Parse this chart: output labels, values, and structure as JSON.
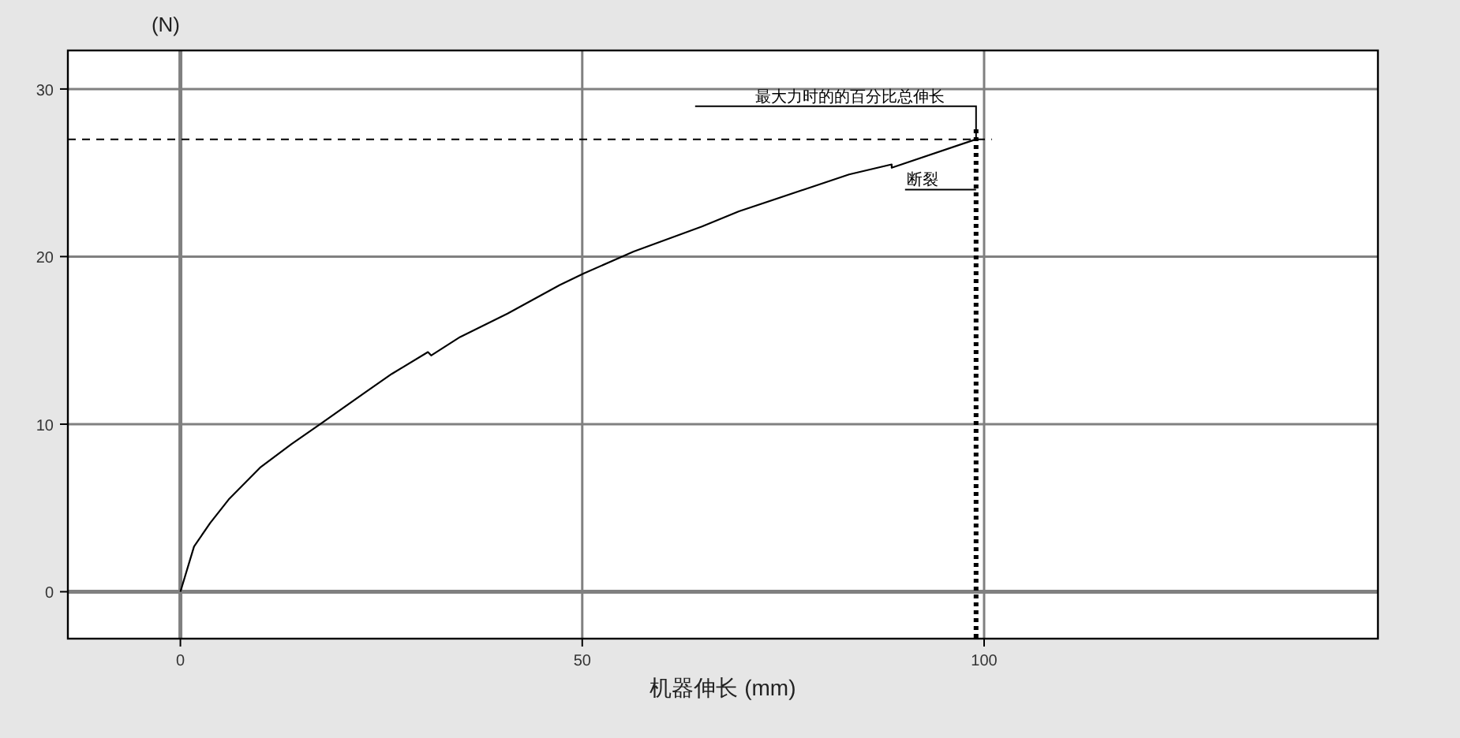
{
  "chart_data": {
    "type": "line",
    "xlabel": "机器伸长 (mm)",
    "ylabel": "(N)",
    "xlim": [
      -14,
      149
    ],
    "ylim": [
      -2.8,
      32.3
    ],
    "xticks": [
      0,
      50,
      100
    ],
    "yticks": [
      0,
      10,
      20,
      30
    ],
    "grid": true,
    "marker": "none",
    "line_style": "solid",
    "series": [
      {
        "color": "#000000",
        "x": [
          0,
          1.7,
          3.7,
          6.0,
          9.9,
          13.8,
          17.4,
          23.0,
          26.3,
          30.8,
          31.2,
          34.8,
          40.7,
          47.2,
          50.2,
          56.4,
          64.9,
          69.5,
          83.2,
          88.5,
          88.5,
          99.0
        ],
        "values": [
          0,
          2.7,
          4.1,
          5.5,
          7.4,
          8.8,
          10.0,
          11.9,
          13.0,
          14.3,
          14.1,
          15.2,
          16.6,
          18.3,
          19.0,
          20.3,
          21.8,
          22.7,
          24.9,
          25.5,
          25.3,
          27.0
        ]
      }
    ],
    "ref_lines": [
      {
        "axis": "y",
        "value": 27.0,
        "line_style": "dashed",
        "color": "#000000"
      },
      {
        "axis": "x",
        "value": 99.0,
        "line_style": "dotted",
        "color": "#000000"
      }
    ],
    "annotations": [
      {
        "text": "最大力时的的百分比总伸长",
        "x": 99.0,
        "y": 27.0
      },
      {
        "text": "断裂",
        "x": 99.0,
        "y": 24.0
      }
    ]
  }
}
